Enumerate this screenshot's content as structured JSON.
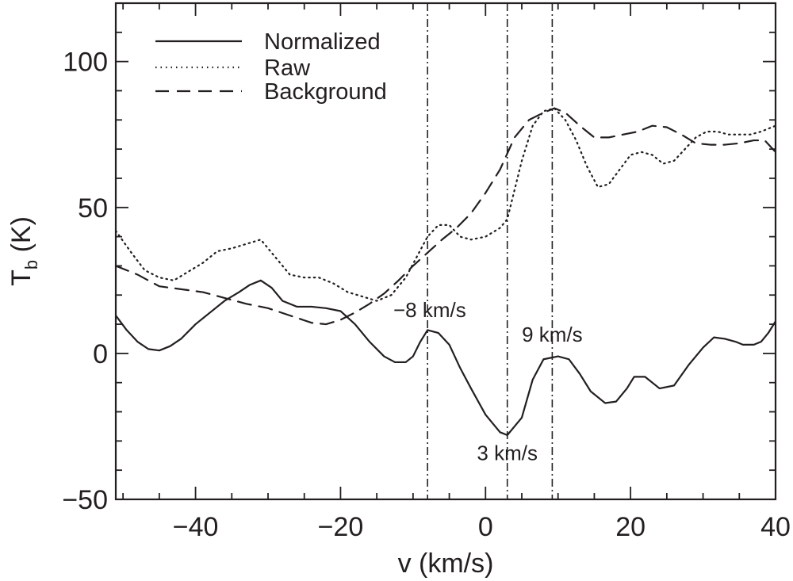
{
  "chart_data": {
    "type": "line",
    "xlabel": "v (km/s)",
    "ylabel_main": "T",
    "ylabel_sub": "b",
    "ylabel_unit": "(K)",
    "xlim": [
      -51,
      40
    ],
    "ylim": [
      -50,
      120
    ],
    "xticks": [
      -40,
      -20,
      0,
      20,
      40
    ],
    "yticks": [
      -50,
      0,
      50,
      100
    ],
    "xtick_labels": [
      "−40",
      "−20",
      "0",
      "20",
      "40"
    ],
    "ytick_labels": [
      "−50",
      "0",
      "50",
      "100"
    ],
    "colors": {
      "ink": "#231f20",
      "background": "#ffffff"
    },
    "series": [
      {
        "name": "Normalized",
        "style": "solid",
        "x": [
          -51,
          -49.5,
          -48,
          -46.5,
          -45,
          -43.5,
          -42,
          -40,
          -38,
          -36,
          -34,
          -32.5,
          -31,
          -29.5,
          -28,
          -26,
          -24,
          -22,
          -20,
          -18,
          -16,
          -14,
          -12.5,
          -11,
          -10,
          -9,
          -8,
          -6.5,
          -5,
          -3.5,
          -2,
          0,
          2,
          3,
          4,
          5,
          6.5,
          8,
          10,
          11.5,
          13,
          14.5,
          16.5,
          18,
          19.5,
          20.5,
          22,
          24,
          26,
          28,
          30,
          31.5,
          33,
          34.5,
          35.5,
          37,
          38,
          39,
          40
        ],
        "y": [
          13,
          8,
          4,
          1.5,
          1,
          2.5,
          5,
          10,
          14,
          18,
          21,
          23.5,
          25,
          22.5,
          18,
          16,
          16,
          15.5,
          14.5,
          10,
          4,
          -1,
          -3,
          -3,
          -1,
          4,
          8,
          7,
          3,
          -5,
          -12,
          -21,
          -27,
          -28,
          -25,
          -22,
          -9,
          -2,
          -1,
          -2,
          -7,
          -13,
          -17,
          -16.5,
          -12,
          -8,
          -8,
          -12,
          -11,
          -4,
          2,
          5.5,
          5,
          4,
          3,
          3,
          4,
          7,
          11
        ]
      },
      {
        "name": "Raw",
        "style": "dotted",
        "x": [
          -51,
          -49,
          -47,
          -45,
          -43,
          -41,
          -39,
          -37,
          -35,
          -33,
          -31,
          -29,
          -27,
          -25,
          -23,
          -21,
          -19,
          -17,
          -15,
          -13,
          -11,
          -9.5,
          -8,
          -6.5,
          -5,
          -3.5,
          -2,
          0,
          2,
          3,
          4,
          5,
          6.5,
          8,
          9.5,
          11,
          12.5,
          14,
          15.5,
          17,
          18.5,
          20,
          21.5,
          23,
          24.5,
          26,
          27.5,
          29,
          30.5,
          32,
          33.5,
          35,
          36.5,
          38,
          40
        ],
        "y": [
          42,
          35,
          28.5,
          26,
          25,
          28,
          31,
          35,
          36,
          37.5,
          39,
          33,
          27,
          26,
          26,
          24,
          21,
          19.5,
          18,
          20,
          26,
          33,
          40,
          44,
          44,
          40,
          39,
          40,
          43,
          46,
          56,
          66,
          78,
          83,
          84,
          80,
          73,
          64,
          57,
          58,
          63,
          68,
          69,
          68,
          65,
          66,
          70,
          74,
          76,
          76,
          75,
          75,
          75,
          76,
          78
        ]
      },
      {
        "name": "Background",
        "style": "dashed",
        "x": [
          -51,
          -48,
          -45,
          -42,
          -39,
          -36,
          -33,
          -30,
          -27,
          -24,
          -22,
          -20,
          -18,
          -16,
          -14,
          -12,
          -10,
          -8,
          -6,
          -4,
          -2,
          0,
          2,
          4,
          6,
          8,
          9.5,
          11,
          13,
          15,
          17,
          19,
          21,
          23,
          25,
          27,
          29,
          31,
          33,
          35,
          37,
          38.5,
          40
        ],
        "y": [
          30,
          27,
          23,
          22,
          21,
          19,
          17,
          15.5,
          13,
          10.5,
          10,
          11.5,
          14,
          17,
          20.5,
          25,
          30,
          34.5,
          39,
          43,
          48,
          55,
          63,
          74,
          80,
          82.5,
          84,
          82.5,
          78,
          74,
          74,
          75,
          76,
          78,
          77.5,
          75,
          72,
          71.5,
          71.5,
          72,
          73,
          73,
          69
        ]
      }
    ],
    "vertical_lines": [
      {
        "x": -8,
        "label": "−8 km/s",
        "label_x": -7.7,
        "label_y": 12.5
      },
      {
        "x": 3,
        "label": "3 km/s",
        "label_x": 3,
        "label_y": -36.5
      },
      {
        "x": 9.2,
        "label": "9 km/s",
        "label_x": 9.2,
        "label_y": 4
      }
    ],
    "legend": {
      "position": "top-left",
      "entries": [
        "Normalized",
        "Raw",
        "Background"
      ]
    }
  }
}
